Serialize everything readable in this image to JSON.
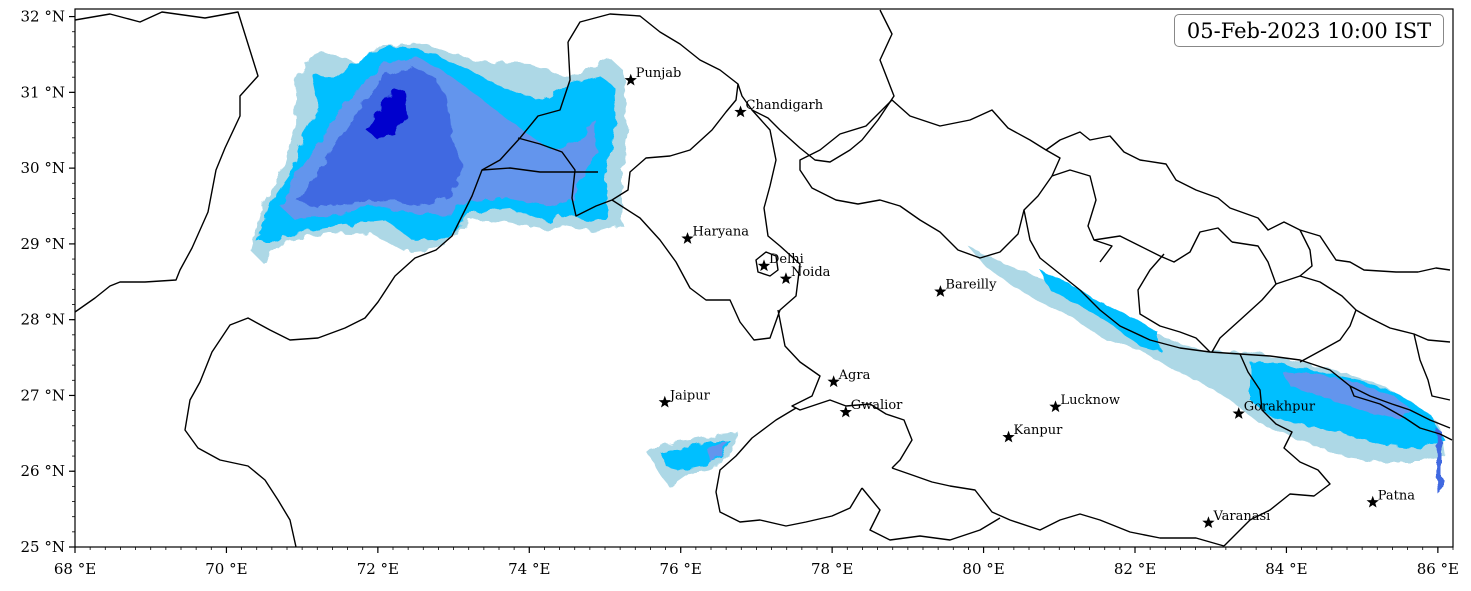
{
  "timestamp": "05-Feb-2023 10:00 IST",
  "map": {
    "lon_range": [
      68,
      86.2
    ],
    "lat_range": [
      25,
      32.1
    ],
    "x_ticks": [
      {
        "value": 68,
        "label": "68 °E"
      },
      {
        "value": 70,
        "label": "70 °E"
      },
      {
        "value": 72,
        "label": "72 °E"
      },
      {
        "value": 74,
        "label": "74 °E"
      },
      {
        "value": 76,
        "label": "76 °E"
      },
      {
        "value": 78,
        "label": "78 °E"
      },
      {
        "value": 80,
        "label": "80 °E"
      },
      {
        "value": 82,
        "label": "82 °E"
      },
      {
        "value": 84,
        "label": "84 °E"
      },
      {
        "value": 86,
        "label": "86 °E"
      }
    ],
    "y_ticks": [
      {
        "value": 25,
        "label": "25 °N"
      },
      {
        "value": 26,
        "label": "26 °N"
      },
      {
        "value": 27,
        "label": "27 °N"
      },
      {
        "value": 28,
        "label": "28 °N"
      },
      {
        "value": 29,
        "label": "29 °N"
      },
      {
        "value": 30,
        "label": "30 °N"
      },
      {
        "value": 31,
        "label": "31 °N"
      },
      {
        "value": 32,
        "label": "32 °N"
      }
    ],
    "minor_tick_step": 0.2,
    "shading_colors": [
      "#add8e6",
      "#00bfff",
      "#6495ed",
      "#4169e1",
      "#0000cd"
    ],
    "marker": "star",
    "cities": [
      {
        "name": "Punjab",
        "lon": 75.34,
        "lat": 31.16
      },
      {
        "name": "Chandigarh",
        "lon": 76.79,
        "lat": 30.74
      },
      {
        "name": "Haryana",
        "lon": 76.09,
        "lat": 29.07
      },
      {
        "name": "Delhi",
        "lon": 77.1,
        "lat": 28.71
      },
      {
        "name": "Noida",
        "lon": 77.39,
        "lat": 28.54
      },
      {
        "name": "Bareilly",
        "lon": 79.43,
        "lat": 28.37
      },
      {
        "name": "Agra",
        "lon": 78.02,
        "lat": 27.18
      },
      {
        "name": "Jaipur",
        "lon": 75.79,
        "lat": 26.91
      },
      {
        "name": "Gwalior",
        "lon": 78.18,
        "lat": 26.78
      },
      {
        "name": "Lucknow",
        "lon": 80.95,
        "lat": 26.85
      },
      {
        "name": "Kanpur",
        "lon": 80.33,
        "lat": 26.45
      },
      {
        "name": "Gorakhpur",
        "lon": 83.37,
        "lat": 26.76
      },
      {
        "name": "Patna",
        "lon": 85.14,
        "lat": 25.59
      },
      {
        "name": "Varanasi",
        "lon": 82.97,
        "lat": 25.32
      }
    ]
  }
}
